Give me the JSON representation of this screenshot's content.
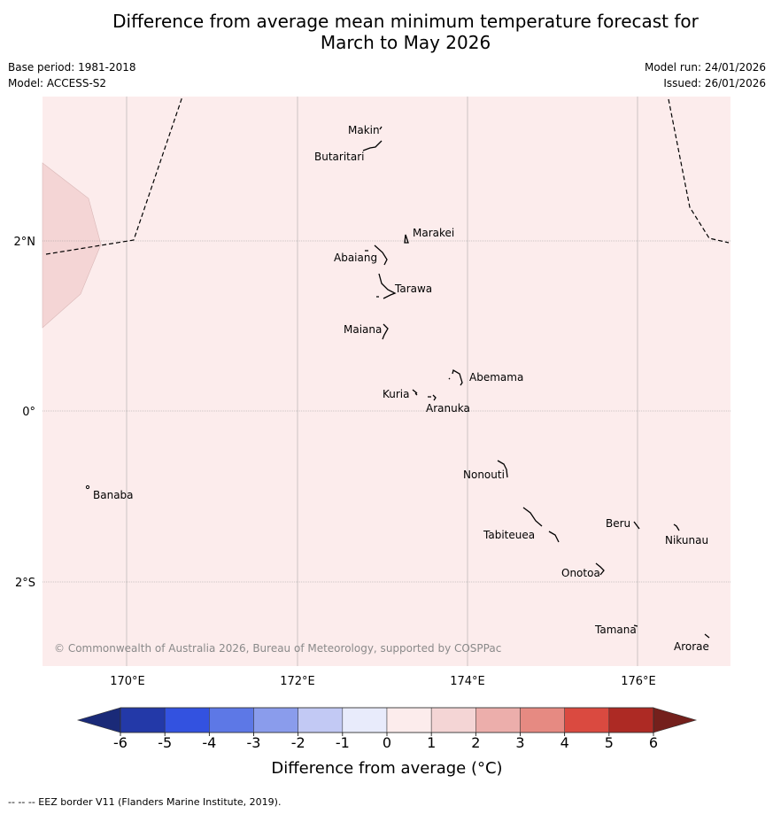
{
  "title": {
    "line1": "Difference from average mean minimum temperature forecast for",
    "line2": "March to May 2026"
  },
  "meta": {
    "base_period": "Base period: 1981-2018",
    "model": "Model: ACCESS-S2",
    "model_run": "Model run: 24/01/2026",
    "issued": "Issued: 26/01/2026"
  },
  "map": {
    "background_category": "0 to 1",
    "west_patch_category": "1 to 2",
    "lat_labels": [
      "2°N",
      "0°",
      "2°S"
    ],
    "lon_labels": [
      "170°E",
      "172°E",
      "174°E",
      "176°E"
    ],
    "islands": [
      {
        "name": "Makin"
      },
      {
        "name": "Butaritari"
      },
      {
        "name": "Marakei"
      },
      {
        "name": "Abaiang"
      },
      {
        "name": "Tarawa"
      },
      {
        "name": "Maiana"
      },
      {
        "name": "Abemama"
      },
      {
        "name": "Kuria"
      },
      {
        "name": "Aranuka"
      },
      {
        "name": "Banaba"
      },
      {
        "name": "Nonouti"
      },
      {
        "name": "Beru"
      },
      {
        "name": "Tabiteuea"
      },
      {
        "name": "Nikunau"
      },
      {
        "name": "Onotoa"
      },
      {
        "name": "Tamana"
      },
      {
        "name": "Arorae"
      }
    ],
    "copyright": "© Commonwealth of Australia 2026, Bureau of Meteorology, supported by COSPPac"
  },
  "colorbar": {
    "title": "Difference from average (°C)",
    "ticks": [
      "-6",
      "-5",
      "-4",
      "-3",
      "-2",
      "-1",
      "0",
      "1",
      "2",
      "3",
      "4",
      "5",
      "6"
    ],
    "colors": {
      "min_extend": "#1a2a78",
      "bins": [
        "#2339a8",
        "#3352e0",
        "#5d78e6",
        "#8a9cec",
        "#c2c9f4",
        "#e8ebfb",
        "#fcecec",
        "#f4d5d5",
        "#ecaeab",
        "#e68a82",
        "#da4a40",
        "#ad2a24"
      ],
      "max_extend": "#74201c"
    }
  },
  "footnote": "--  --  -- EEZ border V11 (Flanders Marine Institute, 2019)."
}
